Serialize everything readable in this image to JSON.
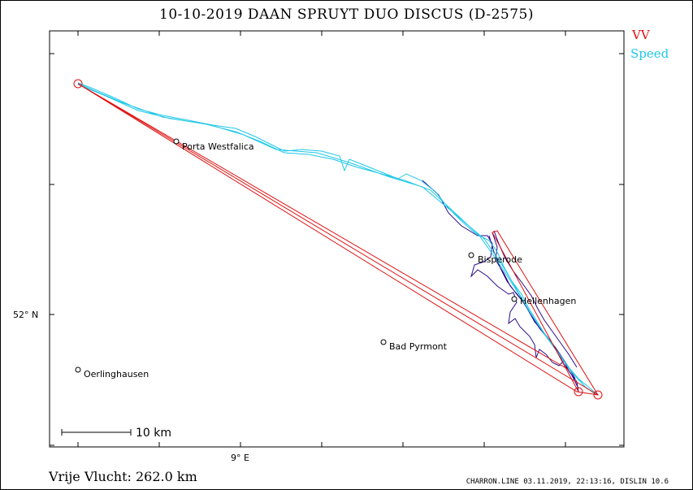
{
  "header": {
    "title": "10-10-2019   DAAN SPRUYT   DUO DISCUS (D-2575)"
  },
  "legend": {
    "vv_label": "VV",
    "vv_color": "#e01010",
    "speed_label": "Speed",
    "speed_color": "#20c8e8",
    "track_color": "#2a0a8c"
  },
  "axes": {
    "lat_label": "52° N",
    "lon_label": "9° E"
  },
  "scale": {
    "label": "10 km"
  },
  "towns": [
    {
      "name": "Porta Westfalica"
    },
    {
      "name": "Bisperode"
    },
    {
      "name": "Hellenhagen"
    },
    {
      "name": "Bad Pyrmont"
    },
    {
      "name": "Oerlinghausen"
    }
  ],
  "footer": {
    "distance": "Vrije Vlucht:  262.0 km",
    "credits": "CHARRON.LINE 03.11.2019, 22:13:16, DISLIN 10.6"
  }
}
